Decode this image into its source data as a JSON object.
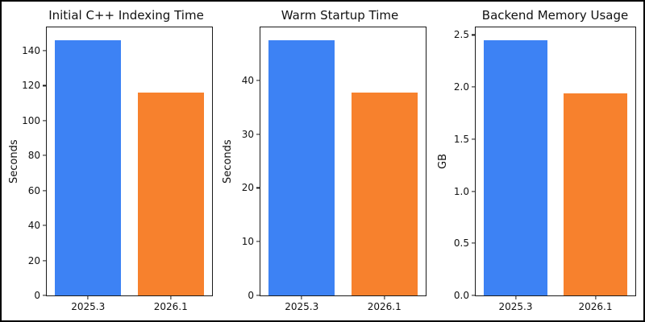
{
  "figure": {
    "background": "#ffffff",
    "border_color": "#000000",
    "spine_color": "#1a1a1a",
    "text_color": "#111111"
  },
  "chart_data": [
    {
      "type": "bar",
      "title": "Initial C++ Indexing Time",
      "ylabel": "Seconds",
      "xlabel": "",
      "categories": [
        "2025.3",
        "2026.1"
      ],
      "values": [
        146,
        116
      ],
      "colors": [
        "#3d82f4",
        "#f7812d"
      ],
      "yticks": [
        0,
        20,
        40,
        60,
        80,
        100,
        120,
        140
      ],
      "ytick_labels": [
        "0",
        "20",
        "40",
        "60",
        "80",
        "100",
        "120",
        "140"
      ],
      "ylim": [
        0,
        153.3
      ],
      "grid": false,
      "legend": "none"
    },
    {
      "type": "bar",
      "title": "Warm Startup Time",
      "ylabel": "Seconds",
      "xlabel": "",
      "categories": [
        "2025.3",
        "2026.1"
      ],
      "values": [
        47.5,
        37.7
      ],
      "colors": [
        "#3d82f4",
        "#f7812d"
      ],
      "yticks": [
        0,
        10,
        20,
        30,
        40
      ],
      "ytick_labels": [
        "0",
        "10",
        "20",
        "30",
        "40"
      ],
      "ylim": [
        0,
        49.875
      ],
      "grid": false,
      "legend": "none"
    },
    {
      "type": "bar",
      "title": "Backend Memory Usage",
      "ylabel": "GB",
      "xlabel": "",
      "categories": [
        "2025.3",
        "2026.1"
      ],
      "values": [
        2.45,
        1.94
      ],
      "colors": [
        "#3d82f4",
        "#f7812d"
      ],
      "yticks": [
        0,
        0.5,
        1.0,
        1.5,
        2.0,
        2.5
      ],
      "ytick_labels": [
        "0.0",
        "0.5",
        "1.0",
        "1.5",
        "2.0",
        "2.5"
      ],
      "ylim": [
        0,
        2.5725
      ],
      "grid": false,
      "legend": "none"
    }
  ]
}
